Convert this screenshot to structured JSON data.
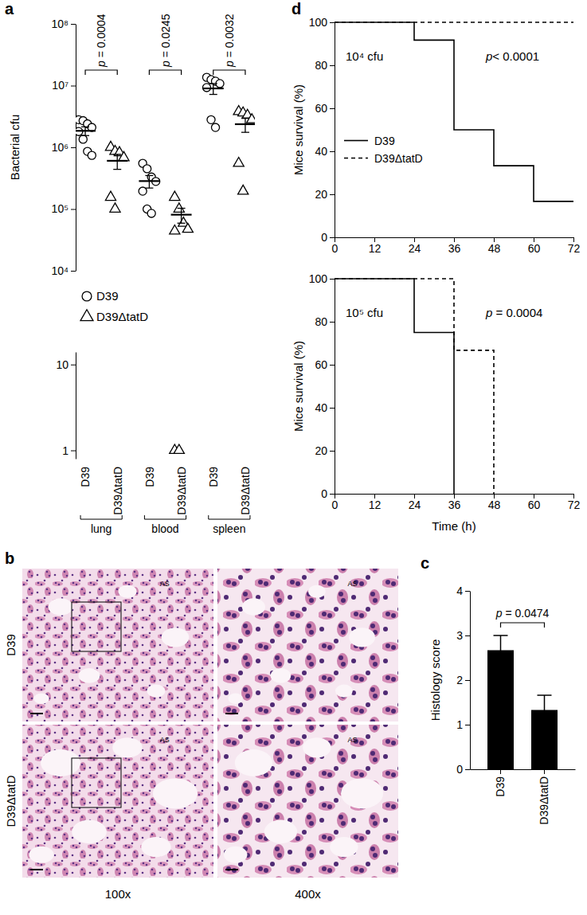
{
  "chart_data": [
    {
      "type": "scatter",
      "log": "y",
      "ylabel": "Bacterial cfu",
      "categories": [
        null,
        null,
        null,
        null,
        null,
        null
      ],
      "ylim": [
        10000,
        100000000
      ],
      "yticks": [
        {
          "value": 10000,
          "label": "10⁴"
        },
        {
          "value": 100000,
          "label": "10⁵"
        },
        {
          "value": 1000000,
          "label": "10⁶"
        },
        {
          "value": 10000000,
          "label": "10⁷"
        },
        {
          "value": 100000000,
          "label": "10⁸"
        }
      ],
      "legend": "bottom-left",
      "annotations": [
        "p = 0.0004",
        "p = 0.0245",
        "p = 0.0032"
      ],
      "series": [
        {
          "name": "D39",
          "marker": "circle",
          "color": "#000000",
          "values": [
            [
              2800000,
              2700000,
              2400000,
              2100000,
              1800000,
              1350000,
              860000,
              740000
            ],
            null,
            [
              550000,
              450000,
              330000,
              280000,
              195000,
              100000,
              85000
            ],
            null,
            [
              13600000,
              12500000,
              11800000,
              10800000,
              9300000,
              2800000,
              2100000
            ],
            null
          ],
          "means": [
            1850000,
            null,
            284000,
            null,
            9000000,
            null
          ],
          "errors": [
            300000,
            null,
            65000,
            null,
            1800000,
            null
          ]
        },
        {
          "name": "D39ΔtatD",
          "marker": "triangle",
          "color": "#000000",
          "values": [
            null,
            [
              1000000,
              860000,
              820000,
              680000,
              155000,
              100000
            ],
            null,
            [
              155000,
              100000,
              59000,
              47000,
              44000
            ],
            null,
            [
              3800000,
              3600000,
              3300000,
              2800000,
              550000,
              195000
            ]
          ],
          "means": [
            null,
            605000,
            null,
            81000,
            null,
            2370000
          ],
          "errors": [
            null,
            165000,
            null,
            22000,
            null,
            620000
          ]
        }
      ]
    },
    {
      "type": "scatter",
      "log": "y",
      "categories": [
        "D39",
        "D39ΔtatD",
        "D39",
        "D39ΔtatD",
        "D39",
        "D39ΔtatD"
      ],
      "groups": [
        "lung",
        "blood",
        "spleen"
      ],
      "ylim": [
        0.8,
        14
      ],
      "yticks": [
        1,
        10
      ],
      "series": [
        {
          "marker": "triangle",
          "color": "#000000",
          "values": [
            null,
            null,
            null,
            [
              1,
              1
            ],
            null,
            null
          ]
        }
      ]
    },
    {
      "type": "bar",
      "ylabel": "Histology score",
      "categories": [
        "D39",
        "D39ΔtatD"
      ],
      "values": [
        2.67,
        1.33
      ],
      "errors": [
        0.33,
        0.33
      ],
      "color": "#000000",
      "ylim": [
        0,
        4
      ],
      "yticks": [
        0,
        1,
        2,
        3,
        4
      ],
      "annotations": [
        "p = 0.0474"
      ]
    },
    {
      "type": "step",
      "ylabel": "Mice survival (%)",
      "xlim": [
        0,
        72
      ],
      "xticks": [
        0,
        12,
        24,
        36,
        48,
        60,
        72
      ],
      "ylim": [
        0,
        100
      ],
      "yticks": [
        0,
        20,
        40,
        60,
        80,
        100
      ],
      "legend": "center-left",
      "annotations": [
        "10⁴ cfu",
        "p< 0.0001"
      ],
      "series": [
        {
          "name": "D39",
          "color": "#000000",
          "line_style": "solid",
          "x": [
            0,
            24,
            36,
            48,
            60,
            72
          ],
          "values": [
            100,
            91.7,
            50,
            33.3,
            16.7,
            16.7
          ]
        },
        {
          "name": "D39ΔtatD",
          "color": "#000000",
          "line_style": "dashed",
          "x": [
            0,
            72
          ],
          "values": [
            100,
            100
          ]
        }
      ]
    },
    {
      "type": "step",
      "ylabel": "Mice survival (%)",
      "xlabel": "Time (h)",
      "xlim": [
        0,
        72
      ],
      "xticks": [
        0,
        12,
        24,
        36,
        48,
        60,
        72
      ],
      "ylim": [
        0,
        100
      ],
      "yticks": [
        0,
        20,
        40,
        60,
        80,
        100
      ],
      "annotations": [
        "10⁵ cfu",
        "p = 0.0004"
      ],
      "series": [
        {
          "color": "#000000",
          "line_style": "solid",
          "x": [
            0,
            24,
            36
          ],
          "values": [
            100,
            75,
            0
          ]
        },
        {
          "color": "#000000",
          "line_style": "dashed",
          "x": [
            0,
            36,
            48
          ],
          "values": [
            100,
            66.7,
            0
          ]
        }
      ]
    }
  ],
  "panel_labels": [
    "a",
    "b",
    "c",
    "d"
  ],
  "histology": {
    "rows": [
      "D39",
      "D39ΔtatD"
    ],
    "columns": [
      "100x",
      "400x"
    ],
    "labels": [
      "AS",
      "AS",
      "AS",
      "AS"
    ]
  }
}
